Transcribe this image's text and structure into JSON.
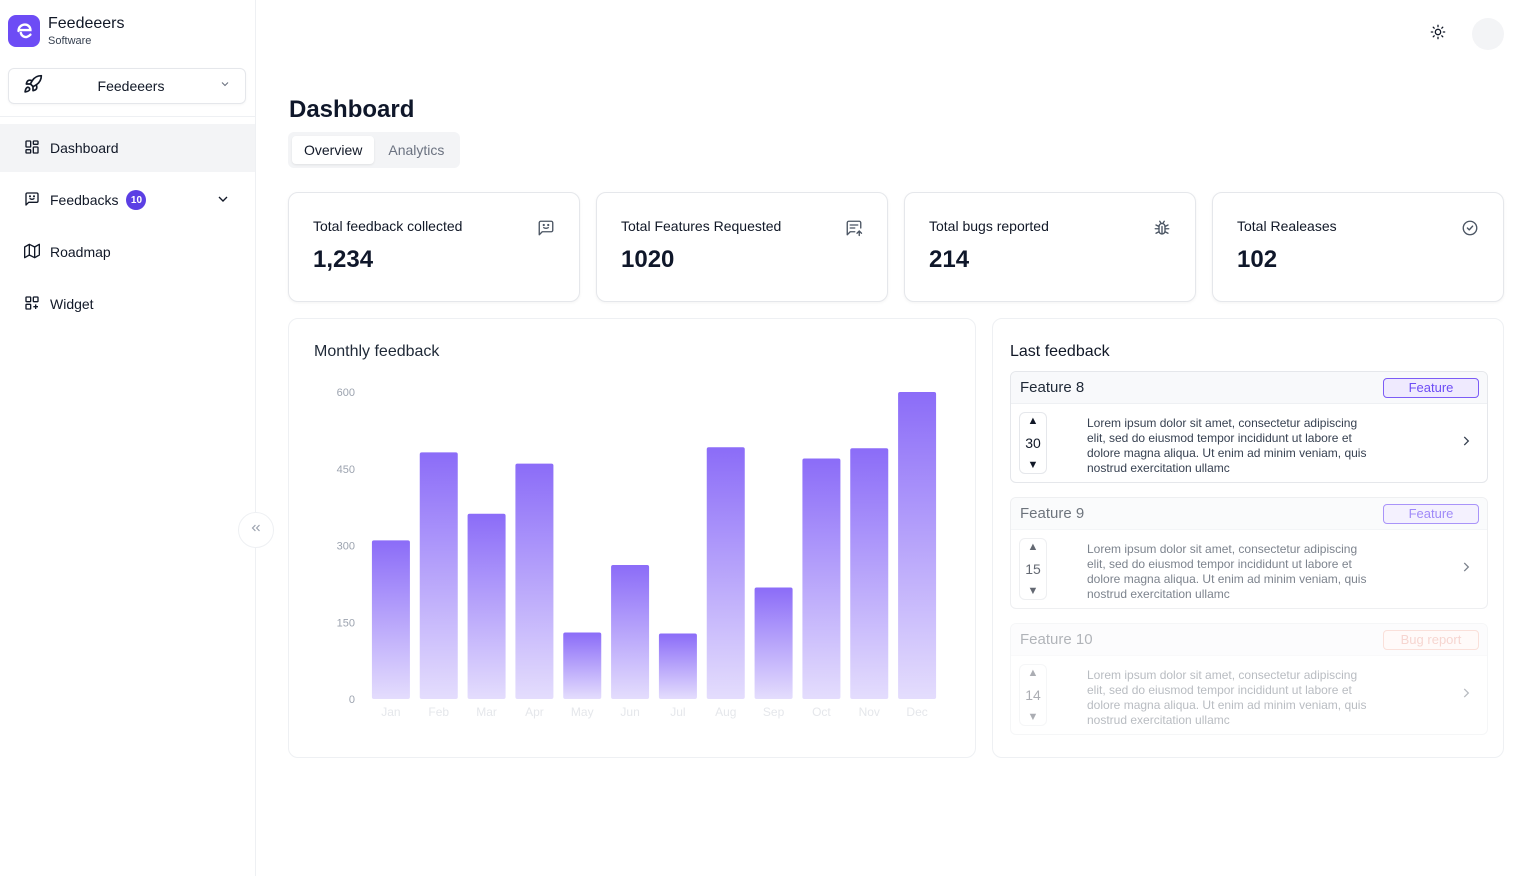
{
  "brand": {
    "name": "Feedeeers",
    "subtitle": "Software"
  },
  "workspace": {
    "label": "Feedeeers"
  },
  "nav": [
    {
      "label": "Dashboard",
      "icon": "dashboard-grid-icon",
      "active": true
    },
    {
      "label": "Feedbacks",
      "icon": "message-square-icon",
      "badge": "10",
      "expandable": true
    },
    {
      "label": "Roadmap",
      "icon": "map-icon"
    },
    {
      "label": "Widget",
      "icon": "widget-plus-grid-icon"
    }
  ],
  "header": {
    "theme_icon": "sun-icon"
  },
  "page": {
    "title": "Dashboard"
  },
  "tabs": [
    {
      "label": "Overview",
      "active": true
    },
    {
      "label": "Analytics"
    }
  ],
  "stats": [
    {
      "title": "Total feedback collected",
      "value": "1,234",
      "icon": "message-square-icon"
    },
    {
      "title": "Total Features Requested",
      "value": "1020",
      "icon": "message-arrow-up-icon"
    },
    {
      "title": "Total bugs reported",
      "value": "214",
      "icon": "bug-icon"
    },
    {
      "title": "Total Realeases",
      "value": "102",
      "icon": "check-circle-icon"
    }
  ],
  "chart_card": {
    "title": "Monthly feedback"
  },
  "chart_data": {
    "type": "bar",
    "categories": [
      "Jan",
      "Feb",
      "Mar",
      "Apr",
      "May",
      "Jun",
      "Jul",
      "Aug",
      "Sep",
      "Oct",
      "Nov",
      "Dec"
    ],
    "values": [
      310,
      482,
      362,
      460,
      130,
      262,
      128,
      492,
      218,
      470,
      490,
      600
    ],
    "yticks": [
      "0",
      "150",
      "300",
      "450",
      "600"
    ],
    "ylim": [
      0,
      600
    ],
    "colors": {
      "top": "#8b6cf8",
      "bottom": "#e4ddfd"
    },
    "grid": false,
    "title": "",
    "xlabel": "",
    "ylabel": ""
  },
  "last_feedback": {
    "title": "Last feedback",
    "items": [
      {
        "name": "Feature 8",
        "tag": "Feature",
        "tag_type": "feature",
        "votes": "30",
        "text": "Lorem ipsum dolor sit amet, consectetur adipiscing elit, sed do eiusmod tempor incididunt ut labore et dolore magna aliqua. Ut enim ad minim veniam, quis nostrud exercitation ullamc",
        "opacity": 1
      },
      {
        "name": "Feature 9",
        "tag": "Feature",
        "tag_type": "feature",
        "votes": "15",
        "text": "Lorem ipsum dolor sit amet, consectetur adipiscing elit, sed do eiusmod tempor incididunt ut labore et dolore magna aliqua. Ut enim ad minim veniam, quis nostrud exercitation ullamc",
        "opacity": 0.65
      },
      {
        "name": "Feature 10",
        "tag": "Bug report",
        "tag_type": "bug",
        "votes": "14",
        "text": "Lorem ipsum dolor sit amet, consectetur adipiscing elit, sed do eiusmod tempor incididunt ut labore et dolore magna aliqua. Ut enim ad minim veniam, quis nostrud exercitation ullamc",
        "opacity": 0.35
      }
    ]
  }
}
